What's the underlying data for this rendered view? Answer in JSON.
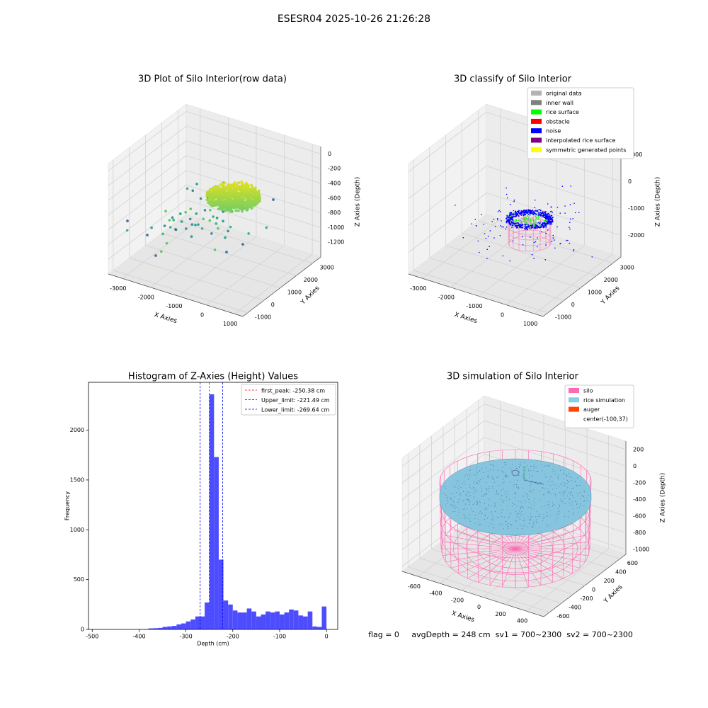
{
  "suptitle": "ESESR04 2025-10-26 21:26:28",
  "footer": "flag = 0     avgDepth = 248 cm  sv1 = 700~2300  sv2 = 700~2300",
  "chart_data": [
    {
      "type": "scatter3d",
      "title": "3D Plot of Silo Interior(row data)",
      "x_label": "X Axies",
      "y_label": "Y Axies",
      "z_label": "Z Axies (Depth)",
      "xlim": [
        -3500,
        1300
      ],
      "ylim": [
        -1300,
        3500
      ],
      "zlim": [
        -1400,
        100
      ],
      "xticks": [
        -3000,
        -2000,
        -1000,
        0,
        1000
      ],
      "yticks": [
        -1000,
        0,
        1000,
        2000,
        3000
      ],
      "zticks": [
        0,
        -200,
        -400,
        -600,
        -800,
        -1000,
        -1200
      ]
    },
    {
      "type": "scatter3d",
      "title": "3D classify of Silo Interior",
      "x_label": "X Axies",
      "y_label": "Y Axies",
      "z_label": "Z Axies (Depth)",
      "xlim": [
        -3500,
        1300
      ],
      "ylim": [
        -1300,
        3500
      ],
      "zlim": [
        -2800,
        1300
      ],
      "xticks": [
        -3000,
        -2000,
        -1000,
        0,
        1000
      ],
      "yticks": [
        -1000,
        0,
        1000,
        2000,
        3000
      ],
      "zticks": [
        1000,
        0,
        -1000,
        -2000
      ],
      "legend": [
        {
          "name": "original data",
          "color": "#b3b3b3"
        },
        {
          "name": "inner wall",
          "color": "#808080"
        },
        {
          "name": "rice surface",
          "color": "#00ff00"
        },
        {
          "name": "obstacle",
          "color": "#ff0000"
        },
        {
          "name": "noise",
          "color": "#0000ff"
        },
        {
          "name": "interpolated rice surface",
          "color": "#800080"
        },
        {
          "name": "symmetric generated points",
          "color": "#ffff00"
        }
      ]
    },
    {
      "type": "histogram",
      "title": "Histogram of Z-Axies (Height) Values",
      "x_label": "Depth (cm)",
      "y_label": "Frequency",
      "color": "#4d4dff",
      "bins": [
        -390,
        -380,
        -370,
        -360,
        -350,
        -340,
        -330,
        -320,
        -310,
        -300,
        -290,
        -280,
        -270,
        -260,
        -250,
        -240,
        -230,
        -220,
        -210,
        -200,
        -190,
        -180,
        -170,
        -160,
        -150,
        -140,
        -130,
        -120,
        -110,
        -100,
        -90,
        -80,
        -70,
        -60,
        -50,
        -40,
        -30,
        -20,
        -10,
        0
      ],
      "counts": [
        3,
        10,
        12,
        15,
        25,
        30,
        35,
        50,
        60,
        80,
        100,
        130,
        130,
        270,
        2360,
        1730,
        700,
        290,
        250,
        190,
        170,
        170,
        210,
        180,
        130,
        150,
        180,
        170,
        180,
        150,
        170,
        200,
        190,
        140,
        130,
        180,
        30,
        25,
        230
      ],
      "xlim": [
        -508,
        24
      ],
      "ylim": [
        0,
        2480
      ],
      "xticks": [
        -500,
        -400,
        -300,
        -200,
        -100,
        0
      ],
      "yticks": [
        0,
        500,
        1000,
        1500,
        2000
      ],
      "vlines": [
        {
          "name": "first_peak: -250.38 cm",
          "value": -250.38,
          "color": "#ff0000"
        },
        {
          "name": "Upper_limit: -221.49 cm",
          "value": -221.49,
          "color": "#0000ff"
        },
        {
          "name": "Lower_limit: -269.64 cm",
          "value": -269.64,
          "color": "#0000ff"
        }
      ]
    },
    {
      "type": "surface3d",
      "title": "3D simulation of Silo Interior",
      "x_label": "X Axies",
      "y_label": "Y Axies",
      "z_label": "Z Axies (Depth)",
      "xlim": [
        -750,
        560
      ],
      "ylim": [
        -700,
        700
      ],
      "zlim": [
        -1060,
        300
      ],
      "xticks": [
        -600,
        -400,
        -200,
        0,
        200,
        400
      ],
      "yticks": [
        -600,
        -400,
        -200,
        0,
        200,
        400,
        600
      ],
      "zticks": [
        200,
        0,
        -200,
        -400,
        -600,
        -800,
        -1000
      ],
      "legend": [
        {
          "name": "silo",
          "color": "#ff69b4"
        },
        {
          "name": "rice simulation",
          "color": "#87ceeb"
        },
        {
          "name": "auger",
          "color": "#ff4500"
        },
        {
          "name": "center(-100,37)",
          "color": "#ffffff"
        }
      ]
    }
  ]
}
